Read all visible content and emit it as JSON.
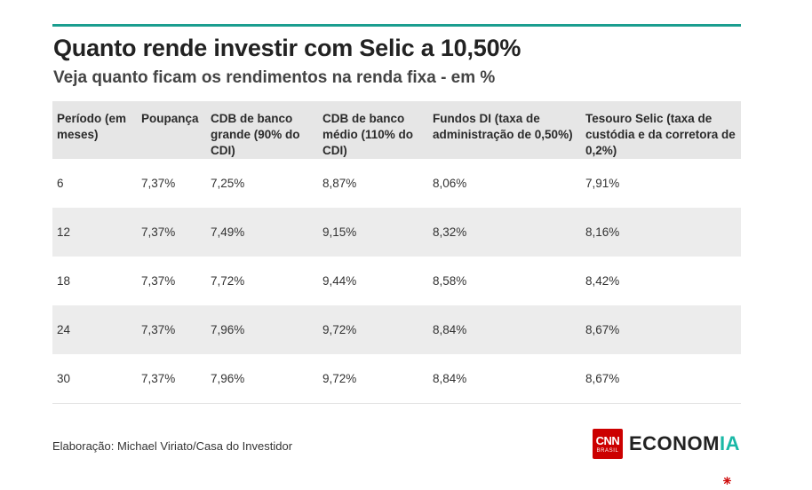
{
  "header": {
    "title": "Quanto rende investir com Selic a 10,50%",
    "subtitle": "Veja quanto ficam os rendimentos na renda fixa - em %"
  },
  "chart_data": {
    "type": "table",
    "columns": [
      "Período (em meses)",
      "Poupança",
      "CDB de banco grande (90% do CDI)",
      "CDB de banco médio (110% do CDI)",
      "Fundos DI (taxa de administração de 0,50%)",
      "Tesouro Selic (taxa de custódia e da corretora de 0,2%)"
    ],
    "rows": [
      [
        "6",
        "7,37%",
        "7,25%",
        "8,87%",
        "8,06%",
        "7,91%"
      ],
      [
        "12",
        "7,37%",
        "7,49%",
        "9,15%",
        "8,32%",
        "8,16%"
      ],
      [
        "18",
        "7,37%",
        "7,72%",
        "9,44%",
        "8,58%",
        "8,42%"
      ],
      [
        "24",
        "7,37%",
        "7,96%",
        "9,72%",
        "8,84%",
        "8,67%"
      ],
      [
        "30",
        "7,37%",
        "7,96%",
        "9,72%",
        "8,84%",
        "8,67%"
      ]
    ],
    "title": "Quanto rende investir com Selic a 10,50%",
    "subtitle": "Veja quanto ficam os rendimentos na renda fixa - em %"
  },
  "footer": {
    "source": "Elaboração: Michael Viriato/Casa do Investidor",
    "logo_line1": "CNN",
    "logo_line2": "BRASIL",
    "brand_main": "ECONOM",
    "brand_accent": "IA"
  },
  "colors": {
    "accent_rule": "#1a9e8f",
    "header_bg": "#e6e6e6",
    "stripe_bg": "#ececec",
    "logo_red": "#cc0000",
    "brand_accent": "#1ab8a6"
  }
}
